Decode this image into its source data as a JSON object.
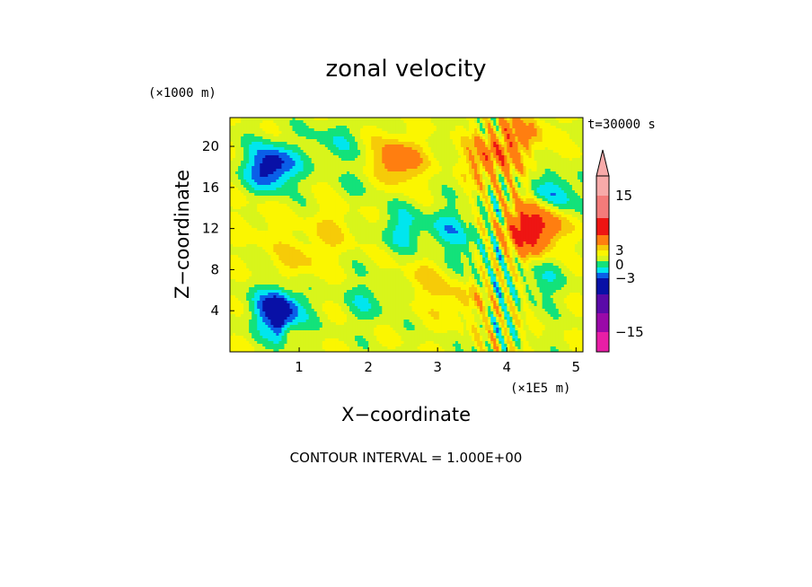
{
  "chart_data": {
    "type": "heatmap",
    "title": "zonal velocity",
    "xlabel": "X−coordinate",
    "ylabel": "Z−coordinate",
    "x_unit": "(×1E5 m)",
    "y_unit": "(×1000 m)",
    "time_label": "t=30000 s",
    "footer": "CONTOUR INTERVAL = 1.000E+00",
    "xlim": [
      0.0,
      5.1
    ],
    "ylim": [
      0.0,
      22.8
    ],
    "x_ticks": [
      "1",
      "2",
      "3",
      "4",
      "5"
    ],
    "y_ticks": [
      "4",
      "8",
      "12",
      "16",
      "20"
    ],
    "colorbar": {
      "tick_labels": [
        "15",
        "3",
        "0",
        "−3",
        "−15"
      ],
      "tick_values": [
        15,
        3,
        0,
        -3,
        -15
      ],
      "levels": [
        -21,
        -15,
        -9,
        -6,
        -3,
        -2,
        -1,
        0,
        1,
        2,
        3,
        6,
        9,
        15,
        21
      ],
      "colors": [
        "#e81ea6",
        "#9a09a8",
        "#5a0aa8",
        "#0810a6",
        "#0a5fe8",
        "#00e6ee",
        "#13e27a",
        "#d8f51b",
        "#fbf600",
        "#f6cb08",
        "#ff7e10",
        "#ee1513",
        "#f47b7a",
        "#f7aaa9"
      ]
    },
    "features": [
      {
        "x": 0.6,
        "z": 18.0,
        "value": -5
      },
      {
        "x": 1.0,
        "z": 9.0,
        "value": 1.5
      },
      {
        "x": 2.0,
        "z": 17.0,
        "value": -1
      },
      {
        "x": 2.4,
        "z": 18.5,
        "value": 4
      },
      {
        "x": 2.0,
        "z": 5.0,
        "value": -1.5
      },
      {
        "x": 2.5,
        "z": 12.0,
        "value": -2
      },
      {
        "x": 3.2,
        "z": 12.0,
        "value": -2
      },
      {
        "x": 3.3,
        "z": 5.0,
        "value": 1.5
      },
      {
        "x": 3.5,
        "z": 9.0,
        "value": -1
      },
      {
        "x": 4.3,
        "z": 11.5,
        "value": 5
      },
      {
        "x": 4.5,
        "z": 13.0,
        "value": 4
      },
      {
        "x": 4.7,
        "z": 15.0,
        "value": -3.5
      },
      {
        "x": 4.5,
        "z": 7.0,
        "value": -1.5
      },
      {
        "x": 0.7,
        "z": 4.0,
        "value": -5
      },
      {
        "x": 1.5,
        "z": 20.5,
        "value": -1.5
      },
      {
        "x": 1.5,
        "z": 12.0,
        "value": 1.2
      },
      {
        "x": 3.8,
        "z": 19.0,
        "value": 4
      },
      {
        "x": 4.2,
        "z": 21.5,
        "value": 3
      },
      {
        "x": 0.4,
        "z": 12.5,
        "value": 0.8
      },
      {
        "x": 2.8,
        "z": 7.0,
        "value": 1.2
      }
    ]
  }
}
